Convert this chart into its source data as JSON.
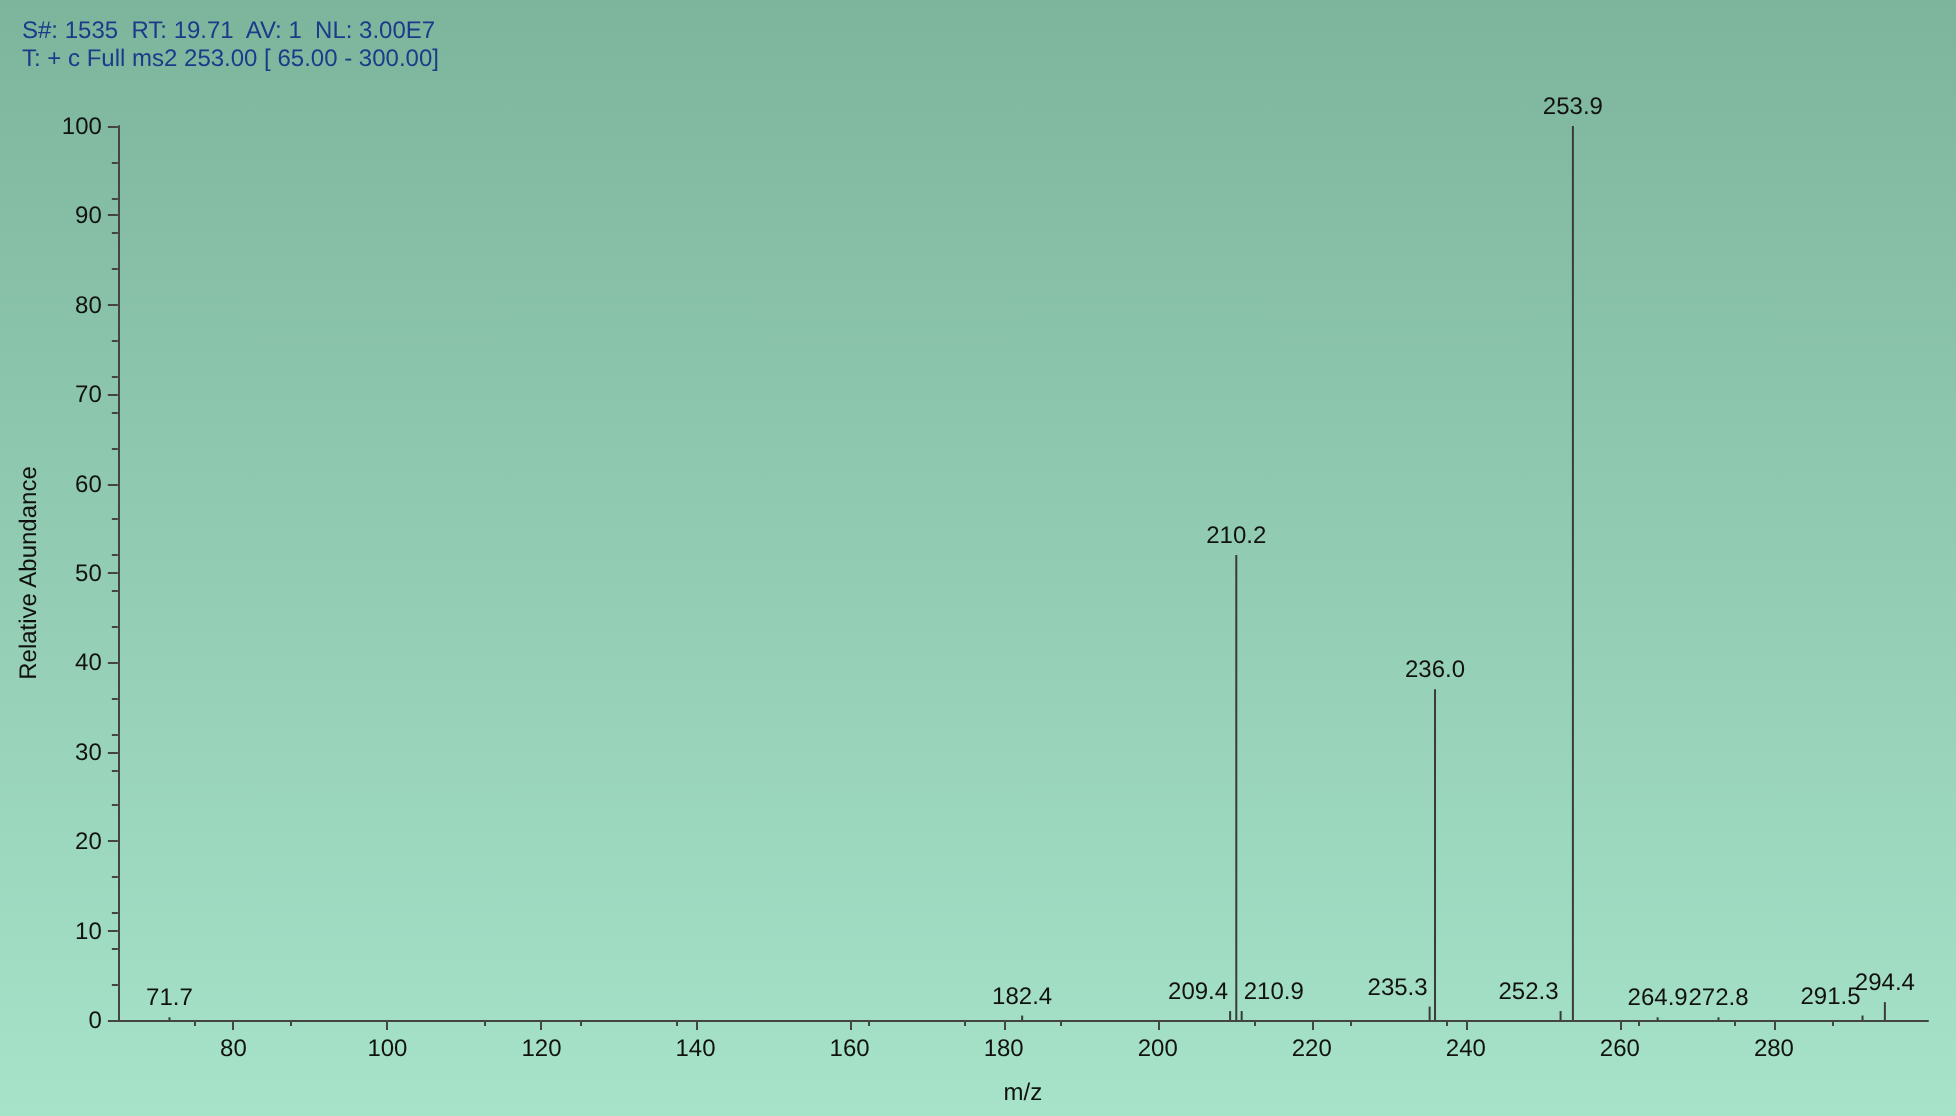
{
  "chart_data": {
    "type": "bar",
    "title": "S#: 1535  RT: 19.71  AV: 1  NL: 3.00E7",
    "subtitle": "T: + c Full ms2 253.00 [ 65.00 - 300.00]",
    "xlabel": "m/z",
    "ylabel": "Relative Abundance",
    "x": [
      71.7,
      182.4,
      209.4,
      210.2,
      210.9,
      235.3,
      236.0,
      252.3,
      253.9,
      264.9,
      272.8,
      291.5,
      294.4
    ],
    "values": [
      0.3,
      0.5,
      1,
      52,
      1,
      1.5,
      37,
      1,
      100,
      0.3,
      0.3,
      0.5,
      2
    ],
    "annotations": [
      {
        "text": "71.7",
        "x": 71.7,
        "y": 0.3
      },
      {
        "text": "182.4",
        "x": 182.4,
        "y": 0.5
      },
      {
        "text": "209.4",
        "x": 209.4,
        "y": 1
      },
      {
        "text": "210.2",
        "x": 210.2,
        "y": 52
      },
      {
        "text": "210.9",
        "x": 210.9,
        "y": 1
      },
      {
        "text": "235.3",
        "x": 235.3,
        "y": 1.5
      },
      {
        "text": "236.0",
        "x": 236.0,
        "y": 37
      },
      {
        "text": "252.3",
        "x": 252.3,
        "y": 1
      },
      {
        "text": "253.9",
        "x": 253.9,
        "y": 100
      },
      {
        "text": "264.9",
        "x": 264.9,
        "y": 0.3
      },
      {
        "text": "272.8",
        "x": 272.8,
        "y": 0.3
      },
      {
        "text": "291.5",
        "x": 291.5,
        "y": 0.5
      },
      {
        "text": "294.4",
        "x": 294.4,
        "y": 2
      }
    ],
    "color": "#3a3a3a",
    "xlim": [
      65,
      300
    ],
    "xticks": [
      80,
      100,
      120,
      140,
      160,
      180,
      200,
      220,
      240,
      260,
      280
    ],
    "ylim": [
      0,
      100
    ],
    "yticks": [
      0,
      10,
      20,
      30,
      40,
      50,
      60,
      70,
      80,
      90,
      100
    ],
    "grid": false
  }
}
